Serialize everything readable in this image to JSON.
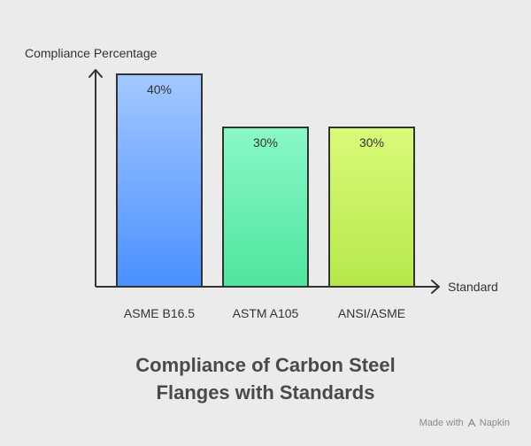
{
  "chart_data": {
    "type": "bar",
    "ylabel": "Compliance Percentage",
    "xlabel": "Standard",
    "categories": [
      "ASME B16.5",
      "ASTM A105",
      "ANSI/ASME"
    ],
    "values": [
      40,
      30,
      30
    ],
    "value_labels": [
      "40%",
      "30%",
      "30%"
    ],
    "ylim": [
      0,
      40
    ],
    "grid": false,
    "legend": "none",
    "bar_gradients": [
      [
        "#a3c8ff",
        "#4a90ff"
      ],
      [
        "#8af8c8",
        "#4ee59d"
      ],
      [
        "#dafa7a",
        "#b6e84a"
      ]
    ]
  },
  "title_lines": [
    "Compliance of Carbon Steel",
    "Flanges with Standards"
  ],
  "footer": {
    "made_with": "Made with",
    "brand": "Napkin",
    "brand_icon": "napkin-logo-icon"
  }
}
